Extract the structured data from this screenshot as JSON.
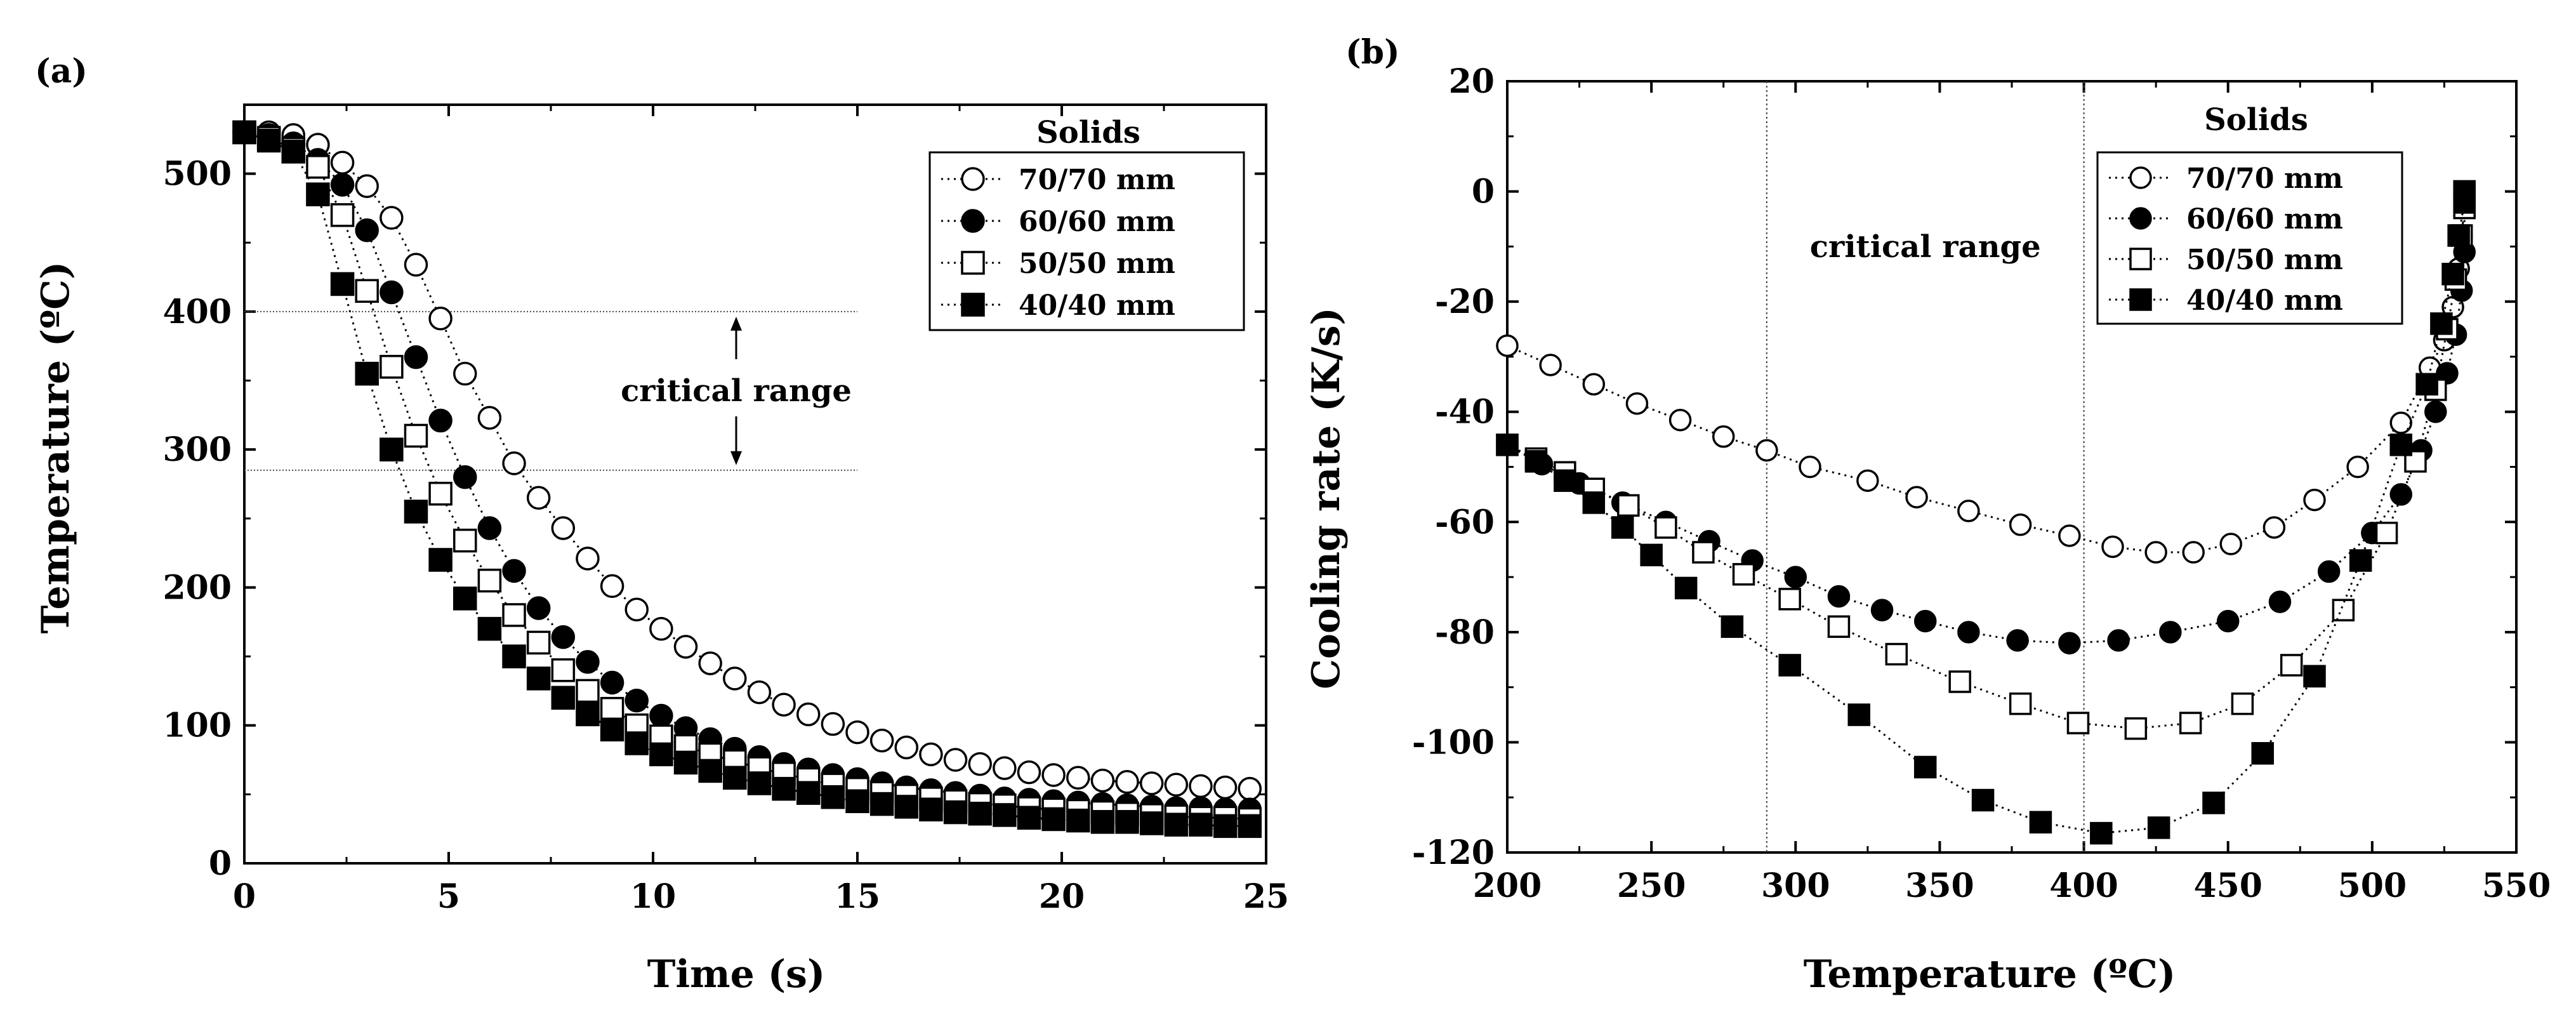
{
  "chart_data": [
    {
      "panel_label": "(a)",
      "type": "scatter",
      "title": "",
      "xlabel": "Time (s)",
      "ylabel": "Temperature (ºC)",
      "xlim": [
        0,
        25
      ],
      "ylim": [
        0,
        550
      ],
      "xticks": [
        0,
        5,
        10,
        15,
        20,
        25
      ],
      "yticks": [
        0,
        100,
        200,
        300,
        400,
        500
      ],
      "grid": false,
      "legend": {
        "title": "Solids",
        "position": "top-right"
      },
      "annotations": {
        "critical_label": "critical range",
        "critical_range": [
          285,
          400
        ],
        "range_x": [
          0,
          15
        ]
      },
      "series": [
        {
          "name": "70/70 mm",
          "marker": "circle",
          "fill": "open",
          "x": [
            0,
            0.6,
            1.2,
            1.8,
            2.4,
            3.0,
            3.6,
            4.2,
            4.8,
            5.4,
            6.0,
            6.6,
            7.2,
            7.8,
            8.4,
            9.0,
            9.6,
            10.2,
            10.8,
            11.4,
            12.0,
            12.6,
            13.2,
            13.8,
            14.4,
            15.0,
            15.6,
            16.2,
            16.8,
            17.4,
            18.0,
            18.6,
            19.2,
            19.8,
            20.4,
            21.0,
            21.6,
            22.2,
            22.8,
            23.4,
            24.0,
            24.6
          ],
          "y": [
            530,
            530,
            528,
            521,
            508,
            491,
            468,
            434,
            395,
            355,
            323,
            290,
            265,
            243,
            221,
            201,
            184,
            170,
            157,
            145,
            134,
            124,
            115,
            108,
            101,
            95,
            89,
            84,
            79,
            75,
            72,
            69,
            66,
            64,
            62,
            60,
            59,
            58,
            57,
            56,
            55,
            54
          ]
        },
        {
          "name": "60/60 mm",
          "marker": "circle",
          "fill": "solid",
          "x": [
            0,
            0.6,
            1.2,
            1.8,
            2.4,
            3.0,
            3.6,
            4.2,
            4.8,
            5.4,
            6.0,
            6.6,
            7.2,
            7.8,
            8.4,
            9.0,
            9.6,
            10.2,
            10.8,
            11.4,
            12.0,
            12.6,
            13.2,
            13.8,
            14.4,
            15.0,
            15.6,
            16.2,
            16.8,
            17.4,
            18.0,
            18.6,
            19.2,
            19.8,
            20.4,
            21.0,
            21.6,
            22.2,
            22.8,
            23.4,
            24.0,
            24.6
          ],
          "y": [
            530,
            528,
            522,
            510,
            492,
            459,
            414,
            367,
            321,
            280,
            243,
            212,
            185,
            164,
            146,
            131,
            118,
            107,
            98,
            90,
            83,
            77,
            72,
            68,
            64,
            61,
            58,
            55,
            53,
            51,
            49,
            47,
            46,
            45,
            44,
            43,
            42,
            41,
            40,
            40,
            39,
            39
          ]
        },
        {
          "name": "50/50 mm",
          "marker": "square",
          "fill": "open",
          "x": [
            0,
            0.6,
            1.2,
            1.8,
            2.4,
            3.0,
            3.6,
            4.2,
            4.8,
            5.4,
            6.0,
            6.6,
            7.2,
            7.8,
            8.4,
            9.0,
            9.6,
            10.2,
            10.8,
            11.4,
            12.0,
            12.6,
            13.2,
            13.8,
            14.4,
            15.0,
            15.6,
            16.2,
            16.8,
            17.4,
            18.0,
            18.6,
            19.2,
            19.8,
            20.4,
            21.0,
            21.6,
            22.2,
            22.8,
            23.4,
            24.0,
            24.6
          ],
          "y": [
            530,
            526,
            518,
            505,
            470,
            415,
            360,
            310,
            268,
            234,
            205,
            180,
            160,
            140,
            125,
            112,
            100,
            92,
            85,
            79,
            74,
            69,
            65,
            61,
            57,
            54,
            51,
            49,
            47,
            45,
            43,
            42,
            40,
            39,
            38,
            37,
            36,
            35,
            34,
            33,
            33,
            32
          ]
        },
        {
          "name": "40/40 mm",
          "marker": "square",
          "fill": "solid",
          "x": [
            0,
            0.6,
            1.2,
            1.8,
            2.4,
            3.0,
            3.6,
            4.2,
            4.8,
            5.4,
            6.0,
            6.6,
            7.2,
            7.8,
            8.4,
            9.0,
            9.6,
            10.2,
            10.8,
            11.4,
            12.0,
            12.6,
            13.2,
            13.8,
            14.4,
            15.0,
            15.6,
            16.2,
            16.8,
            17.4,
            18.0,
            18.6,
            19.2,
            19.8,
            20.4,
            21.0,
            21.6,
            22.2,
            22.8,
            23.4,
            24.0,
            24.6
          ],
          "y": [
            530,
            524,
            516,
            485,
            420,
            355,
            300,
            255,
            220,
            192,
            170,
            150,
            134,
            120,
            108,
            97,
            87,
            79,
            73,
            67,
            62,
            58,
            54,
            51,
            48,
            45,
            43,
            41,
            39,
            37,
            36,
            35,
            33,
            32,
            31,
            30,
            30,
            29,
            28,
            28,
            27,
            27
          ]
        }
      ]
    },
    {
      "panel_label": "(b)",
      "type": "scatter",
      "title": "",
      "xlabel": "Temperature (ºC)",
      "ylabel": "Cooling rate (K/s)",
      "xlim": [
        200,
        550
      ],
      "ylim": [
        -120,
        20
      ],
      "xticks": [
        200,
        250,
        300,
        350,
        400,
        450,
        500,
        550
      ],
      "yticks": [
        20,
        0,
        -20,
        -40,
        -60,
        -80,
        -100,
        -120
      ],
      "grid": false,
      "legend": {
        "title": "Solids",
        "position": "top-right"
      },
      "annotations": {
        "critical_label": "critical range",
        "critical_range": [
          290,
          400
        ]
      },
      "series": [
        {
          "name": "70/70 mm",
          "marker": "circle",
          "fill": "open",
          "x": [
            200,
            215,
            230,
            245,
            260,
            275,
            290,
            305,
            325,
            342,
            360,
            378,
            395,
            410,
            425,
            438,
            451,
            466,
            480,
            495,
            510,
            520,
            525,
            528,
            530,
            531,
            532,
            532
          ],
          "y": [
            -28,
            -31.5,
            -35,
            -38.5,
            -41.5,
            -44.5,
            -47,
            -50,
            -52.5,
            -55.5,
            -58,
            -60.5,
            -62.5,
            -64.5,
            -65.5,
            -65.5,
            -64,
            -61,
            -56,
            -50,
            -42,
            -32,
            -27,
            -21,
            -14,
            -8,
            -3,
            0
          ]
        },
        {
          "name": "60/60 mm",
          "marker": "circle",
          "fill": "solid",
          "x": [
            200,
            212,
            225,
            240,
            255,
            270,
            285,
            300,
            315,
            330,
            345,
            360,
            377,
            395,
            412,
            430,
            450,
            468,
            485,
            500,
            510,
            517,
            522,
            526,
            529,
            531,
            532,
            532
          ],
          "y": [
            -46,
            -49.5,
            -53,
            -56.5,
            -60,
            -63.5,
            -67,
            -70,
            -73.5,
            -76,
            -78,
            -80,
            -81.5,
            -82,
            -81.5,
            -80,
            -78,
            -74.5,
            -69,
            -62,
            -55,
            -47,
            -40,
            -33,
            -26,
            -18,
            -11,
            -3
          ]
        },
        {
          "name": "50/50 mm",
          "marker": "square",
          "fill": "open",
          "x": [
            200,
            210,
            220,
            230,
            242,
            255,
            268,
            282,
            298,
            315,
            335,
            357,
            378,
            398,
            418,
            437,
            455,
            472,
            490,
            505,
            515,
            522,
            526,
            529,
            531,
            532,
            532
          ],
          "y": [
            -46,
            -48.5,
            -51,
            -54,
            -57,
            -61,
            -65.5,
            -69.5,
            -74,
            -79,
            -84,
            -89,
            -93,
            -96.5,
            -97.5,
            -96.5,
            -93,
            -86,
            -76,
            -62,
            -49,
            -36,
            -25,
            -16,
            -8,
            -3,
            0
          ]
        },
        {
          "name": "40/40 mm",
          "marker": "square",
          "fill": "solid",
          "x": [
            200,
            210,
            220,
            230,
            240,
            250,
            262,
            278,
            298,
            322,
            345,
            365,
            385,
            406,
            426,
            445,
            462,
            480,
            496,
            510,
            519,
            524,
            528,
            530,
            532,
            532
          ],
          "y": [
            -46,
            -49,
            -52.5,
            -56.5,
            -61,
            -66,
            -72,
            -79,
            -86,
            -95,
            -104.5,
            -110.5,
            -114.5,
            -116.5,
            -115.5,
            -111,
            -102,
            -88,
            -67,
            -46,
            -35,
            -24,
            -15,
            -8,
            -2,
            0
          ]
        }
      ]
    }
  ]
}
